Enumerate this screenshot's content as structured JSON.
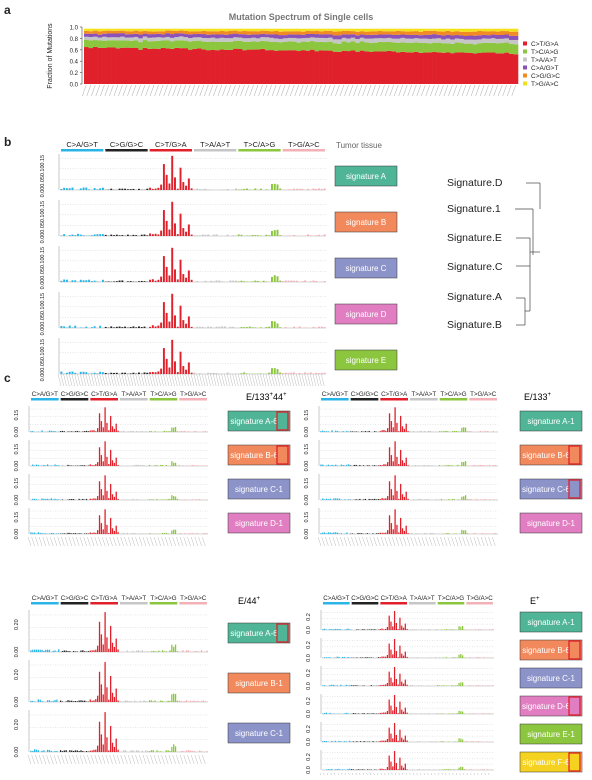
{
  "panel_letters": [
    "a",
    "b",
    "c"
  ],
  "colors": {
    "ca": "#2bb5e6",
    "cg": "#222222",
    "ct": "#e0202a",
    "ta": "#c6c6c6",
    "tc": "#8cc63f",
    "tg": "#f3b0b7",
    "sigA": "#4fb596",
    "sigB": "#f2895c",
    "sigC": "#8b93c9",
    "sigD": "#e07ec1",
    "sigE": "#8cc63f",
    "sigF": "#f5d21f",
    "highlight": "#e0202a"
  },
  "mutation_classes": [
    "C>A/G>T",
    "C>G/G>C",
    "C>T/G>A",
    "T>A/A>T",
    "T>C/A>G",
    "T>G/A>C"
  ],
  "panel_a": {
    "title": "Mutation Spectrum of Single cells",
    "ylabel": "Fraction of Mutations",
    "yticks": [
      "0.0",
      "0.2",
      "0.4",
      "0.6",
      "0.8",
      "1.0"
    ],
    "legend": [
      {
        "label": "C>T/G>A",
        "color": "#e0202a"
      },
      {
        "label": "T>C/A>G",
        "color": "#8cc63f"
      },
      {
        "label": "T>A/A>T",
        "color": "#c6c6c6"
      },
      {
        "label": "C>A/G>T",
        "color": "#8a52b8"
      },
      {
        "label": "C>G/G>C",
        "color": "#f18a24"
      },
      {
        "label": "T>G/A>C",
        "color": "#f3e21b"
      }
    ]
  },
  "panel_b": {
    "header": "Tumor tissue",
    "yticks": [
      "0.00",
      "0.05",
      "0.10",
      "0.15"
    ],
    "signatures": [
      "signature A",
      "signature B",
      "signature C",
      "signature D",
      "signature E"
    ],
    "dendrogram_labels": [
      "Signature.D",
      "Signature.1",
      "Signature.E",
      "Signature.C",
      "Signature.A",
      "Signature.B"
    ]
  },
  "panel_c": [
    {
      "title": "E/133+44+",
      "title_main": "E/133",
      "title_sup": "+",
      "title_main2": "44",
      "title_sup2": "+",
      "yticks": [
        "0.00",
        "0.15"
      ],
      "signatures": [
        {
          "label": "signature A-6",
          "highlight": true
        },
        {
          "label": "signature B-6",
          "highlight": true
        },
        {
          "label": "signature C-1",
          "highlight": false
        },
        {
          "label": "signature D-1",
          "highlight": false
        }
      ]
    },
    {
      "title": "E/133+",
      "title_main": "E/133",
      "title_sup": "+",
      "title_main2": "",
      "title_sup2": "",
      "yticks": [
        "0.00",
        "0.15"
      ],
      "signatures": [
        {
          "label": "signature A-1",
          "highlight": false
        },
        {
          "label": "signature B-6",
          "highlight": true
        },
        {
          "label": "signature C-6",
          "highlight": true
        },
        {
          "label": "signature D-1",
          "highlight": false
        }
      ]
    },
    {
      "title": "E/44+",
      "title_main": "E/44",
      "title_sup": "+",
      "title_main2": "",
      "title_sup2": "",
      "yticks": [
        "0.00",
        "0.20"
      ],
      "signatures": [
        {
          "label": "signature A-6",
          "highlight": true
        },
        {
          "label": "signature B-1",
          "highlight": false
        },
        {
          "label": "signature C-1",
          "highlight": false
        }
      ]
    },
    {
      "title": "E+",
      "title_main": "E",
      "title_sup": "+",
      "title_main2": "",
      "title_sup2": "",
      "yticks": [
        "0.0",
        "0.2"
      ],
      "signatures": [
        {
          "label": "signature A-1",
          "highlight": false
        },
        {
          "label": "signature B-6",
          "highlight": true
        },
        {
          "label": "signature C-1",
          "highlight": false
        },
        {
          "label": "signature D-6",
          "highlight": true
        },
        {
          "label": "signature E-1",
          "highlight": false
        },
        {
          "label": "signature F-6",
          "highlight": true
        }
      ]
    }
  ],
  "chart_data": [
    {
      "type": "bar",
      "stacked": true,
      "title": "Mutation Spectrum of Single cells",
      "ylabel": "Fraction of Mutations",
      "ylim": [
        0,
        1
      ],
      "n_cells": 96,
      "series": [
        {
          "name": "C>T/G>A",
          "start": 0.66,
          "end": 0.55
        },
        {
          "name": "T>C/A>G",
          "start": 0.13,
          "end": 0.18
        },
        {
          "name": "T>A/A>T",
          "start": 0.06,
          "end": 0.08
        },
        {
          "name": "C>A/G>T",
          "start": 0.06,
          "end": 0.07
        },
        {
          "name": "C>G/G>C",
          "start": 0.05,
          "end": 0.07
        },
        {
          "name": "T>G/A>C",
          "start": 0.04,
          "end": 0.05
        }
      ]
    },
    {
      "type": "bar",
      "description_key": "96-channel mutational signature profile",
      "classes": [
        "C>A/G>T",
        "C>G/G>C",
        "C>T/G>A",
        "T>A/A>T",
        "T>C/A>G",
        "T>G/A>C"
      ],
      "ct_peaks": [
        0.14,
        0.16,
        0.09,
        0.05
      ],
      "tc_peaks": [
        0.02,
        0.03
      ],
      "ylim": [
        0,
        0.17
      ]
    }
  ]
}
